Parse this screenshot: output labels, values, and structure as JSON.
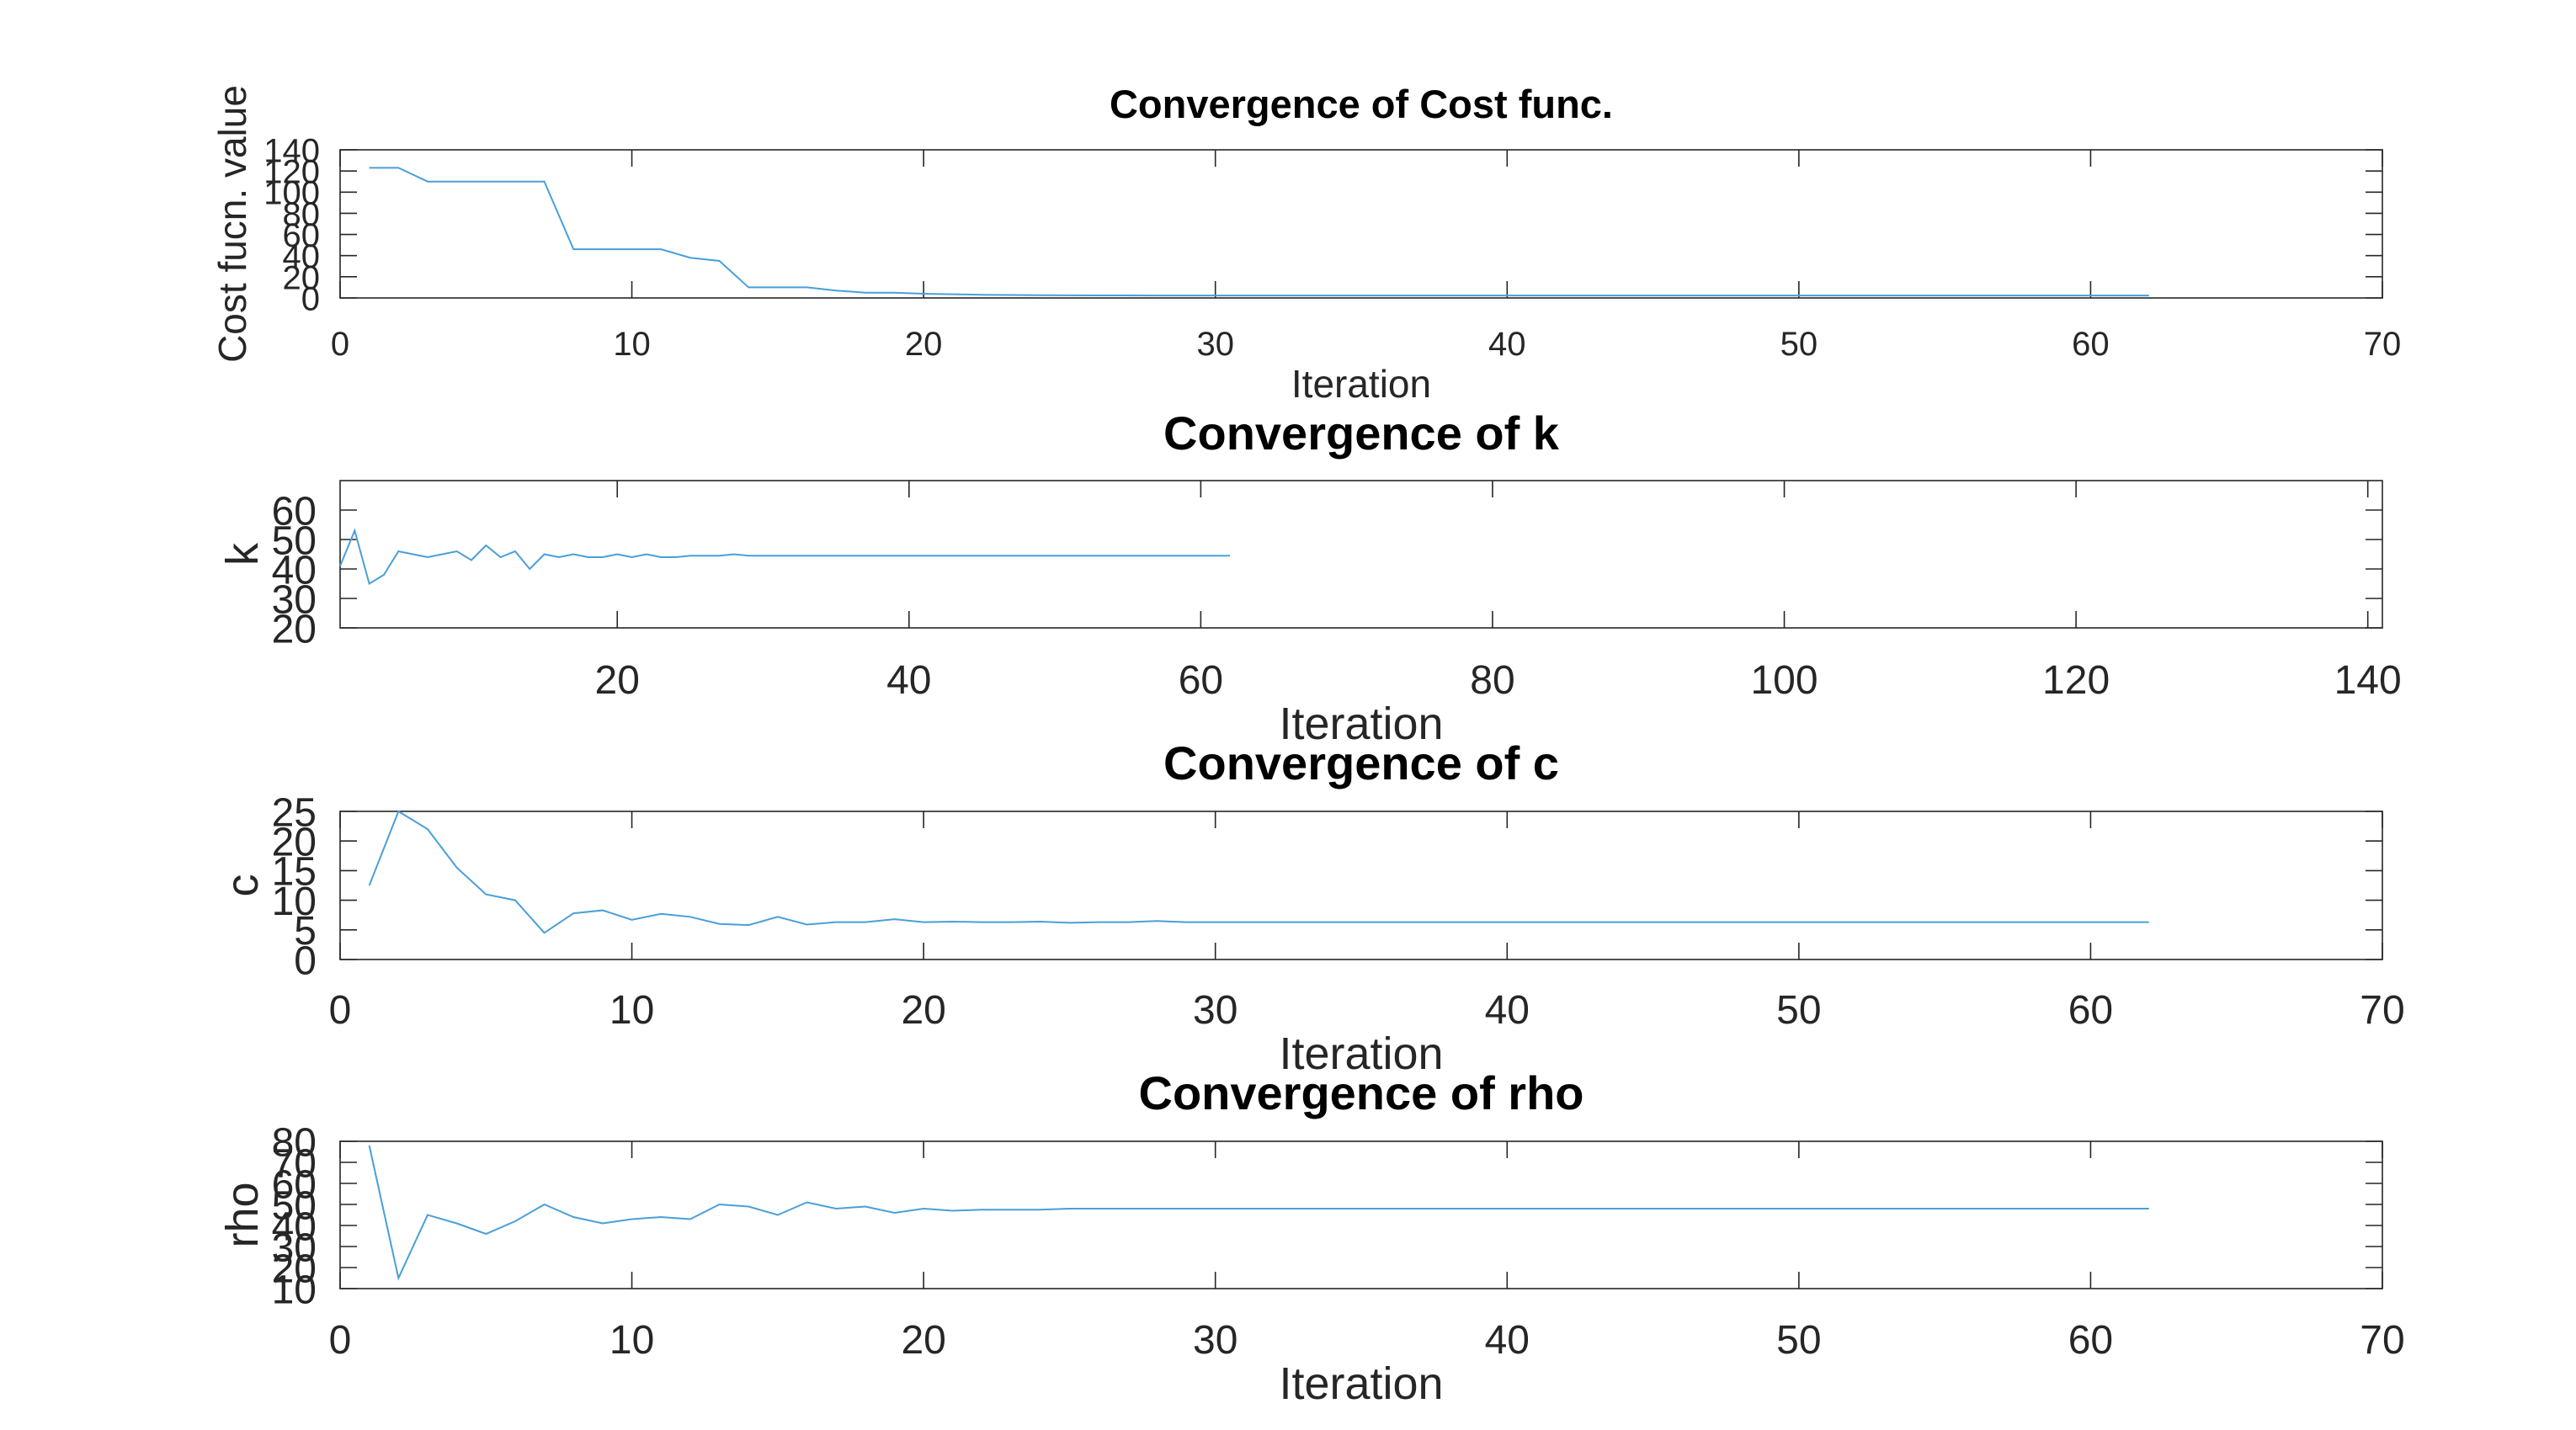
{
  "figure": {
    "line_color": "#4a9fd8",
    "axis_color": "#262626"
  },
  "chart_data": [
    {
      "type": "line",
      "title": "Convergence of Cost func.",
      "xlabel": "Iteration",
      "ylabel": "Cost fucn. value",
      "xlim": [
        0,
        70
      ],
      "ylim": [
        0,
        140
      ],
      "xticks": [
        0,
        10,
        20,
        30,
        40,
        50,
        60,
        70
      ],
      "yticks": [
        0,
        20,
        40,
        60,
        80,
        100,
        120,
        140
      ],
      "x": [
        1,
        2,
        3,
        4,
        5,
        6,
        7,
        8,
        9,
        10,
        11,
        12,
        13,
        14,
        15,
        16,
        17,
        18,
        19,
        20,
        21,
        22,
        23,
        24,
        25,
        26,
        27,
        28,
        29,
        30,
        31,
        32,
        33,
        34,
        35,
        36,
        37,
        38,
        39,
        40,
        41,
        42,
        43,
        44,
        45,
        46,
        47,
        48,
        49,
        50,
        51,
        52,
        53,
        54,
        55,
        56,
        57,
        58,
        59,
        60,
        61,
        62
      ],
      "series": [
        {
          "values": [
            123,
            123,
            110,
            110,
            110,
            110,
            110,
            46,
            46,
            46,
            46,
            38,
            35,
            10,
            10,
            10,
            7,
            5,
            5,
            4,
            3.5,
            3,
            2.8,
            2.6,
            2.5,
            2.4,
            2.4,
            2.3,
            2.3,
            2.3,
            2.3,
            2.3,
            2.3,
            2.3,
            2.3,
            2.3,
            2.3,
            2.3,
            2.3,
            2.3,
            2.3,
            2.3,
            2.3,
            2.3,
            2.3,
            2.3,
            2.3,
            2.3,
            2.3,
            2.3,
            2.3,
            2.3,
            2.3,
            2.3,
            2.3,
            2.3,
            2.3,
            2.3,
            2.3,
            2.3,
            2.3,
            2.3
          ]
        }
      ]
    },
    {
      "type": "line",
      "title": "Convergence of k",
      "xlabel": "Iteration",
      "ylabel": "k",
      "xlim": [
        1,
        141
      ],
      "ylim": [
        20,
        70
      ],
      "xticks": [
        20,
        40,
        60,
        80,
        100,
        120,
        140
      ],
      "yticks": [
        20,
        30,
        40,
        50,
        60
      ],
      "x": [
        1,
        2,
        3,
        4,
        5,
        6,
        7,
        8,
        9,
        10,
        11,
        12,
        13,
        14,
        15,
        16,
        17,
        18,
        19,
        20,
        21,
        22,
        23,
        24,
        25,
        26,
        27,
        28,
        29,
        30,
        31,
        32,
        33,
        34,
        35,
        36,
        37,
        38,
        39,
        40,
        41,
        42,
        43,
        44,
        45,
        46,
        47,
        48,
        49,
        50,
        51,
        52,
        53,
        54,
        55,
        56,
        57,
        58,
        59,
        60,
        61,
        62
      ],
      "series": [
        {
          "values": [
            41,
            53,
            35,
            38,
            46,
            45,
            44,
            45,
            46,
            43,
            48,
            44,
            46,
            40,
            45,
            44,
            45,
            44,
            44,
            45,
            44,
            45,
            44,
            44,
            44.5,
            44.5,
            44.5,
            45,
            44.5,
            44.5,
            44.5,
            44.5,
            44.5,
            44.5,
            44.5,
            44.5,
            44.5,
            44.5,
            44.5,
            44.5,
            44.5,
            44.5,
            44.5,
            44.5,
            44.5,
            44.5,
            44.5,
            44.5,
            44.5,
            44.5,
            44.5,
            44.5,
            44.5,
            44.5,
            44.5,
            44.5,
            44.5,
            44.5,
            44.5,
            44.5,
            44.5,
            44.5
          ]
        }
      ]
    },
    {
      "type": "line",
      "title": "Convergence of c",
      "xlabel": "Iteration",
      "ylabel": "c",
      "xlim": [
        0,
        70
      ],
      "ylim": [
        0,
        25
      ],
      "xticks": [
        0,
        10,
        20,
        30,
        40,
        50,
        60,
        70
      ],
      "yticks": [
        0,
        5,
        10,
        15,
        20,
        25
      ],
      "x": [
        1,
        2,
        3,
        4,
        5,
        6,
        7,
        8,
        9,
        10,
        11,
        12,
        13,
        14,
        15,
        16,
        17,
        18,
        19,
        20,
        21,
        22,
        23,
        24,
        25,
        26,
        27,
        28,
        29,
        30,
        31,
        32,
        33,
        34,
        35,
        36,
        37,
        38,
        39,
        40,
        41,
        42,
        43,
        44,
        45,
        46,
        47,
        48,
        49,
        50,
        51,
        52,
        53,
        54,
        55,
        56,
        57,
        58,
        59,
        60,
        61,
        62
      ],
      "series": [
        {
          "values": [
            12.5,
            25,
            22,
            15.5,
            11,
            10,
            4.5,
            7.8,
            8.3,
            6.7,
            7.7,
            7.2,
            6,
            5.8,
            7.2,
            5.9,
            6.3,
            6.3,
            6.8,
            6.3,
            6.4,
            6.3,
            6.3,
            6.4,
            6.2,
            6.3,
            6.3,
            6.5,
            6.3,
            6.3,
            6.3,
            6.3,
            6.3,
            6.3,
            6.3,
            6.3,
            6.3,
            6.3,
            6.3,
            6.3,
            6.3,
            6.3,
            6.3,
            6.3,
            6.3,
            6.3,
            6.3,
            6.3,
            6.3,
            6.3,
            6.3,
            6.3,
            6.3,
            6.3,
            6.3,
            6.3,
            6.3,
            6.3,
            6.3,
            6.3,
            6.3,
            6.3
          ]
        }
      ]
    },
    {
      "type": "line",
      "title": "Convergence of rho",
      "xlabel": "Iteration",
      "ylabel": "rho",
      "xlim": [
        0,
        70
      ],
      "ylim": [
        10,
        80
      ],
      "xticks": [
        0,
        10,
        20,
        30,
        40,
        50,
        60,
        70
      ],
      "yticks": [
        10,
        20,
        30,
        40,
        50,
        60,
        70,
        80
      ],
      "ytick_labels": [
        "10",
        "20",
        "30",
        "40",
        "50",
        "60",
        "70",
        "80"
      ],
      "x": [
        1,
        2,
        3,
        4,
        5,
        6,
        7,
        8,
        9,
        10,
        11,
        12,
        13,
        14,
        15,
        16,
        17,
        18,
        19,
        20,
        21,
        22,
        23,
        24,
        25,
        26,
        27,
        28,
        29,
        30,
        31,
        32,
        33,
        34,
        35,
        36,
        37,
        38,
        39,
        40,
        41,
        42,
        43,
        44,
        45,
        46,
        47,
        48,
        49,
        50,
        51,
        52,
        53,
        54,
        55,
        56,
        57,
        58,
        59,
        60,
        61,
        62
      ],
      "series": [
        {
          "values": [
            78,
            15,
            45,
            41,
            36,
            42,
            50,
            44,
            41,
            43,
            44,
            43,
            50,
            49,
            45,
            51,
            48,
            49,
            46,
            48,
            47,
            47.5,
            47.5,
            47.5,
            48,
            48,
            48,
            48,
            48,
            48,
            48,
            48,
            48,
            48,
            48,
            48,
            48,
            48,
            48,
            48,
            48,
            48,
            48,
            48,
            48,
            48,
            48,
            48,
            48,
            48,
            48,
            48,
            48,
            48,
            48,
            48,
            48,
            48,
            48,
            48,
            48,
            48
          ]
        }
      ]
    }
  ]
}
